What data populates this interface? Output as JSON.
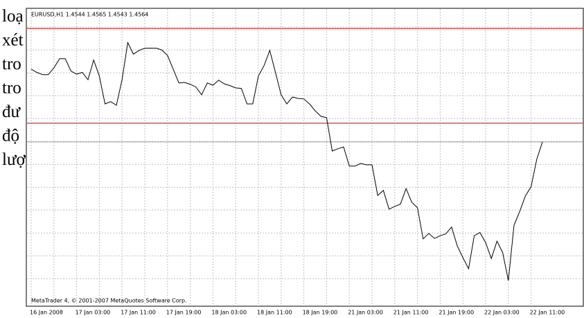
{
  "chart_data": {
    "type": "line",
    "title": "EURUSD,H1  1.4544 1.4565 1.4543 1.4564",
    "footer": "MetaTrader 4, © 2001-2007 MetaQuotes Software Corp.",
    "overlay_text": [
      "loạ",
      "xét",
      "tro",
      "tro",
      "đư",
      "độ",
      "lượ"
    ],
    "categories": [
      "16 Jan 2008",
      null,
      null,
      null,
      null,
      null,
      null,
      null,
      "17 Jan 03:00",
      null,
      null,
      null,
      null,
      null,
      null,
      null,
      "17 Jan 11:00",
      null,
      null,
      null,
      null,
      null,
      null,
      null,
      "17 Jan 19:00",
      null,
      null,
      null,
      null,
      null,
      null,
      null,
      "18 Jan 03:00",
      null,
      null,
      null,
      null,
      null,
      null,
      null,
      "18 Jan 11:00",
      null,
      null,
      null,
      null,
      null,
      null,
      null,
      "18 Jan 19:00",
      null,
      null,
      null,
      null,
      null,
      null,
      null,
      "21 Jan 03:00",
      null,
      null,
      null,
      null,
      null,
      null,
      null,
      "21 Jan 11:00",
      null,
      null,
      null,
      null,
      null,
      null,
      null,
      "21 Jan 19:00",
      null,
      null,
      null,
      null,
      null,
      null,
      null,
      "22 Jan 03:00",
      null,
      null,
      null,
      null,
      null,
      null,
      null,
      "22 Jan 11:00",
      null,
      null
    ],
    "series": [
      {
        "color": "#000000",
        "values": [
          1.4723,
          1.4716,
          1.4711,
          1.4711,
          1.4726,
          1.4746,
          1.4746,
          1.4719,
          1.4712,
          1.4716,
          1.47,
          1.4743,
          1.4708,
          1.4647,
          1.4652,
          1.4644,
          1.47,
          1.4781,
          1.4756,
          1.4764,
          1.4769,
          1.4769,
          1.4769,
          1.4765,
          1.4753,
          1.4723,
          1.4693,
          1.4694,
          1.469,
          1.4684,
          1.4667,
          1.4693,
          1.4688,
          1.4699,
          1.4691,
          1.4687,
          1.4682,
          1.4681,
          1.4647,
          1.4647,
          1.4708,
          1.4731,
          1.4764,
          1.4716,
          1.4667,
          1.4647,
          1.4662,
          1.4659,
          1.4658,
          1.4647,
          1.4632,
          1.462,
          1.4617,
          1.4544,
          1.4549,
          1.4553,
          1.4511,
          1.4511,
          1.4517,
          1.4514,
          1.4514,
          1.4447,
          1.4458,
          1.4417,
          1.4423,
          1.4428,
          1.4462,
          1.4432,
          1.442,
          1.4352,
          1.4364,
          1.4353,
          1.4359,
          1.4363,
          1.4378,
          1.4337,
          1.4311,
          1.4287,
          1.4359,
          1.4366,
          1.4344,
          1.4309,
          1.4347,
          1.4322,
          1.4261,
          1.4382,
          1.4412,
          1.4446,
          1.4466,
          1.4526,
          1.4564
        ]
      }
    ],
    "hlines": [
      {
        "value": 1.4812,
        "color": "#e05050"
      },
      {
        "value": 1.4605,
        "color": "#e05050"
      }
    ],
    "bid_line_color": "#a0a0a0",
    "ylim": [
      1.422,
      1.4853
    ],
    "yticks": [
      1.4265,
      1.4315,
      1.4365,
      1.4415,
      1.4465,
      1.4515,
      1.4565,
      1.4615,
      1.4665,
      1.4715,
      1.4765,
      1.4815
    ],
    "grid": true
  }
}
